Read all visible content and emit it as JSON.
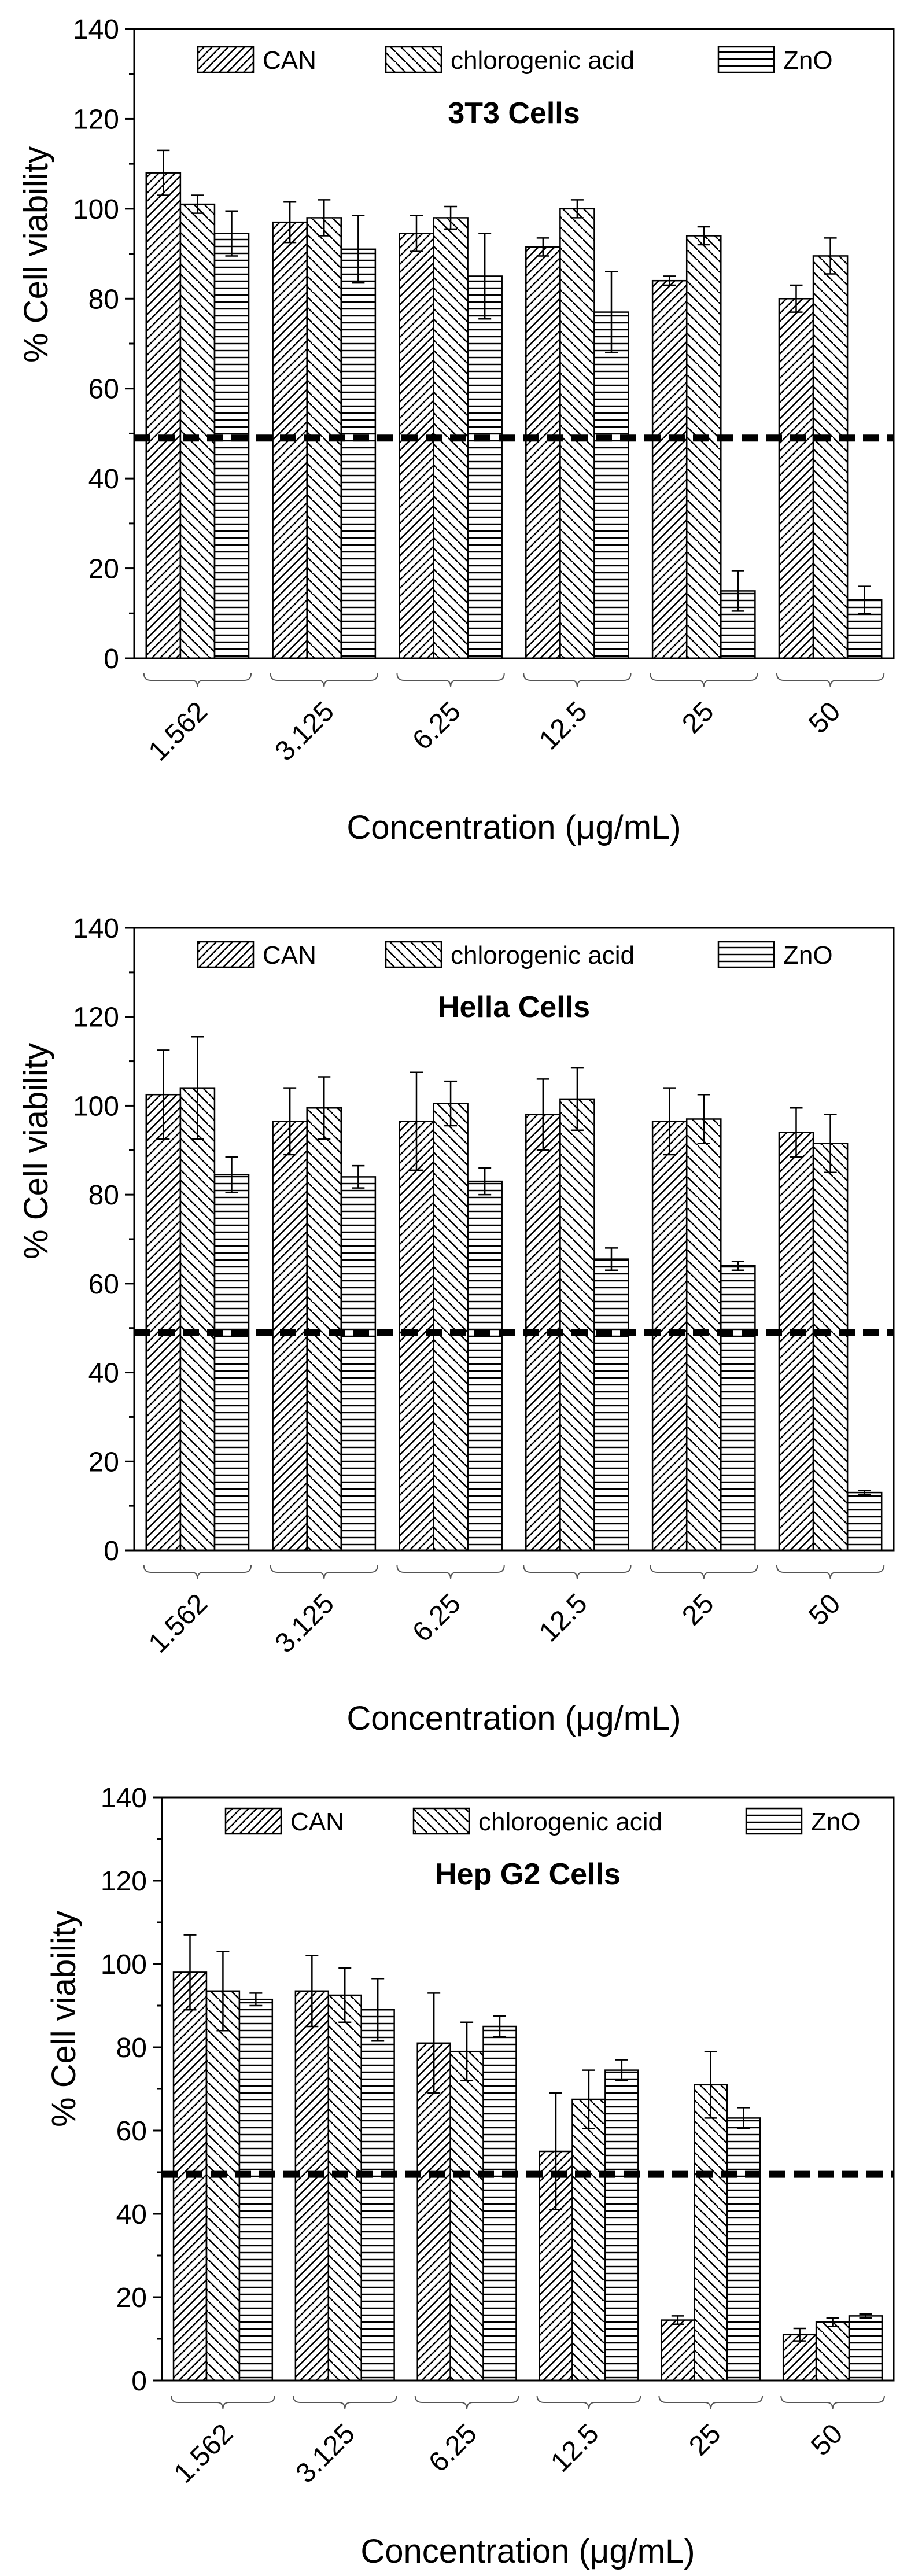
{
  "chart_data": [
    {
      "type": "bar",
      "title": "3T3 Cells",
      "xlabel": "Concentration (μg/mL)",
      "ylabel": "% Cell viability",
      "ylim": [
        0,
        140
      ],
      "yticks": [
        0,
        20,
        40,
        60,
        80,
        100,
        120,
        140
      ],
      "categories": [
        "1.562",
        "3.125",
        "6.25",
        "12.5",
        "25",
        "50"
      ],
      "series": [
        {
          "name": "CAN",
          "values": [
            108,
            97,
            94.5,
            91.5,
            84,
            80
          ],
          "errors": [
            5,
            4.5,
            4,
            2,
            1,
            3
          ]
        },
        {
          "name": "chlorogenic acid",
          "values": [
            101,
            98,
            98,
            100,
            94,
            89.5
          ],
          "errors": [
            2,
            4,
            2.5,
            2,
            2,
            4
          ]
        },
        {
          "name": "ZnO",
          "values": [
            94.5,
            91,
            85,
            77,
            15,
            13
          ],
          "errors": [
            5,
            7.5,
            9.5,
            9,
            4.5,
            3
          ]
        }
      ],
      "reference_line": 49,
      "grid": false,
      "legend_position": "top"
    },
    {
      "type": "bar",
      "title": "Hella Cells",
      "xlabel": "Concentration (μg/mL)",
      "ylabel": "% Cell viability",
      "ylim": [
        0,
        140
      ],
      "yticks": [
        0,
        20,
        40,
        60,
        80,
        100,
        120,
        140
      ],
      "categories": [
        "1.562",
        "3.125",
        "6.25",
        "12.5",
        "25",
        "50"
      ],
      "series": [
        {
          "name": "CAN",
          "values": [
            102.5,
            96.5,
            96.5,
            98,
            96.5,
            94
          ],
          "errors": [
            10,
            7.5,
            11,
            8,
            7.5,
            5.5
          ]
        },
        {
          "name": "chlorogenic acid",
          "values": [
            104,
            99.5,
            100.5,
            101.5,
            97,
            91.5
          ],
          "errors": [
            11.5,
            7,
            5,
            7,
            5.5,
            6.5
          ]
        },
        {
          "name": "ZnO",
          "values": [
            84.5,
            84,
            83,
            65.5,
            64,
            13
          ],
          "errors": [
            4,
            2.5,
            3,
            2.5,
            1,
            0.5
          ]
        }
      ],
      "reference_line": 49,
      "grid": false,
      "legend_position": "top"
    },
    {
      "type": "bar",
      "title": "Hep G2 Cells",
      "xlabel": "Concentration (μg/mL)",
      "ylabel": "% Cell viability",
      "ylim": [
        0,
        140
      ],
      "yticks": [
        0,
        20,
        40,
        60,
        80,
        100,
        120,
        140
      ],
      "categories": [
        "1.562",
        "3.125",
        "6.25",
        "12.5",
        "25",
        "50"
      ],
      "series": [
        {
          "name": "CAN",
          "values": [
            98,
            93.5,
            81,
            55,
            14.5,
            11
          ],
          "errors": [
            9,
            8.5,
            12,
            14,
            1,
            1.5
          ]
        },
        {
          "name": "chlorogenic acid",
          "values": [
            93.5,
            92.5,
            79,
            67.5,
            71,
            14
          ],
          "errors": [
            9.5,
            6.5,
            7,
            7,
            8,
            1
          ]
        },
        {
          "name": "ZnO",
          "values": [
            91.5,
            89,
            85,
            74.5,
            63,
            15.5
          ],
          "errors": [
            1.5,
            7.5,
            2.5,
            2.5,
            2.5,
            0.5
          ]
        }
      ],
      "reference_line": 49.5,
      "grid": false,
      "legend_position": "top"
    }
  ]
}
